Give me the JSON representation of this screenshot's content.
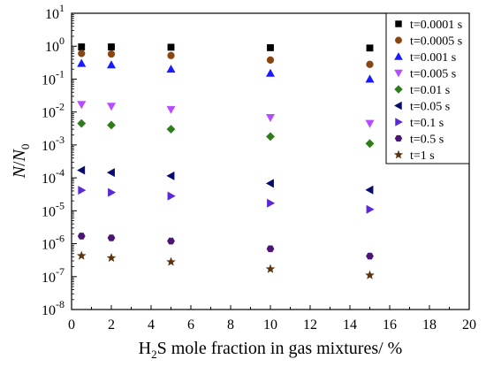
{
  "chart_data": {
    "type": "scatter",
    "xlabel_parts": {
      "pre": "H",
      "sub": "2",
      "post": "S mole fraction in gas mixtures/ %"
    },
    "ylabel_parts": {
      "n": "N",
      "slash": "/",
      "n0": "N",
      "sub0": "0"
    },
    "x_ticks": [
      "0",
      "2",
      "4",
      "6",
      "8",
      "10",
      "12",
      "14",
      "16",
      "18",
      "20"
    ],
    "y_ticks": [
      {
        "base": "10",
        "exp": "1"
      },
      {
        "base": "10",
        "exp": "0"
      },
      {
        "base": "10",
        "exp": "-1"
      },
      {
        "base": "10",
        "exp": "-2"
      },
      {
        "base": "10",
        "exp": "-3"
      },
      {
        "base": "10",
        "exp": "-4"
      },
      {
        "base": "10",
        "exp": "-5"
      },
      {
        "base": "10",
        "exp": "-6"
      },
      {
        "base": "10",
        "exp": "-7"
      },
      {
        "base": "10",
        "exp": "-8"
      }
    ],
    "xlim": [
      0,
      20
    ],
    "ylim": [
      1e-08,
      10
    ],
    "y_scale": "log",
    "grid": false,
    "legend_position": "top-right",
    "x": [
      0.5,
      2,
      5,
      10,
      15
    ],
    "series": [
      {
        "name": "t=0.0001 s",
        "marker": "square",
        "color": "#000000",
        "values": [
          0.95,
          0.95,
          0.93,
          0.9,
          0.88
        ]
      },
      {
        "name": "t=0.0005 s",
        "marker": "circle",
        "color": "#8B4513",
        "values": [
          0.6,
          0.58,
          0.52,
          0.38,
          0.28
        ]
      },
      {
        "name": "t=0.001 s",
        "marker": "triangle-up",
        "color": "#1a1aff",
        "values": [
          0.3,
          0.27,
          0.2,
          0.15,
          0.1
        ]
      },
      {
        "name": "t=0.005 s",
        "marker": "triangle-down",
        "color": "#b64cff",
        "values": [
          0.017,
          0.015,
          0.012,
          0.0068,
          0.0045
        ]
      },
      {
        "name": "t=0.01 s",
        "marker": "diamond",
        "color": "#2e7d1a",
        "values": [
          0.0045,
          0.004,
          0.003,
          0.0018,
          0.0011
        ]
      },
      {
        "name": "t=0.05 s",
        "marker": "triangle-left",
        "color": "#0a0a6e",
        "values": [
          0.00017,
          0.000145,
          0.000115,
          6.8e-05,
          4.3e-05
        ]
      },
      {
        "name": "t=0.1 s",
        "marker": "triangle-right",
        "color": "#5a28d8",
        "values": [
          4.2e-05,
          3.6e-05,
          2.8e-05,
          1.7e-05,
          1.1e-05
        ]
      },
      {
        "name": "t=0.5 s",
        "marker": "hexagon",
        "color": "#4b1575",
        "values": [
          1.7e-06,
          1.5e-06,
          1.2e-06,
          7e-07,
          4.2e-07
        ]
      },
      {
        "name": "t=1 s",
        "marker": "star",
        "color": "#5c3310",
        "values": [
          4.3e-07,
          3.7e-07,
          2.8e-07,
          1.7e-07,
          1.1e-07
        ]
      }
    ]
  }
}
